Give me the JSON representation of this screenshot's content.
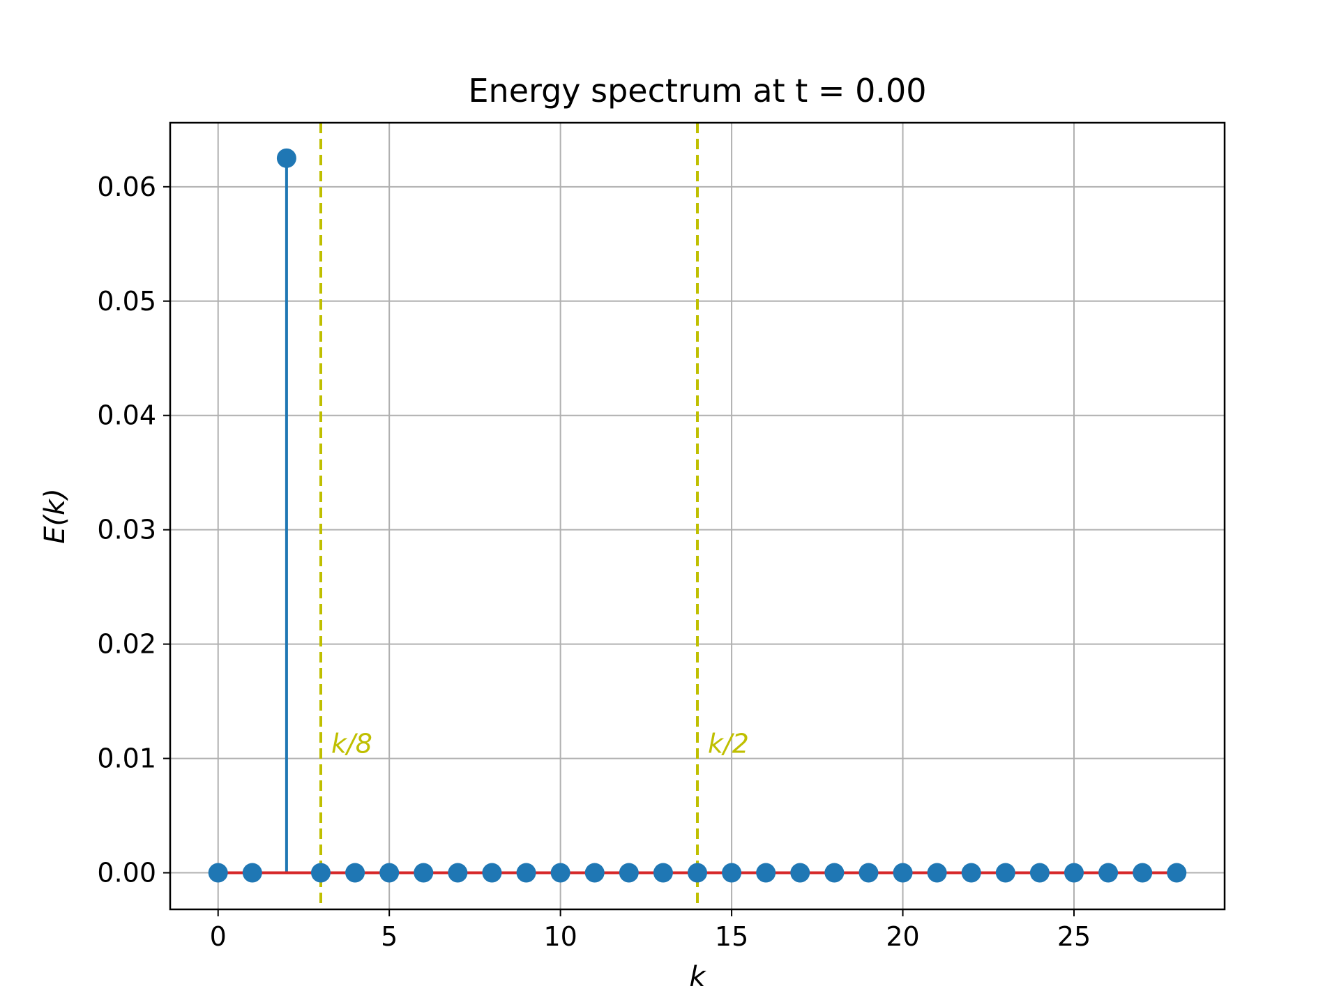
{
  "chart_data": {
    "type": "scatter",
    "subtype": "stem",
    "title": "Energy spectrum at t = 0.00",
    "xlabel": "k",
    "ylabel": "E(k)",
    "xlim": [
      -1.4,
      29.4
    ],
    "ylim": [
      -0.0032,
      0.0656
    ],
    "xticks": [
      0,
      5,
      10,
      15,
      20,
      25
    ],
    "xtick_labels": [
      "0",
      "5",
      "10",
      "15",
      "20",
      "25"
    ],
    "yticks": [
      0.0,
      0.01,
      0.02,
      0.03,
      0.04,
      0.05,
      0.06
    ],
    "ytick_labels": [
      "0.00",
      "0.01",
      "0.02",
      "0.03",
      "0.04",
      "0.05",
      "0.06"
    ],
    "grid": true,
    "series": [
      {
        "color": "#1f77b4",
        "baseline_color": "#d62728",
        "x": [
          0,
          1,
          2,
          3,
          4,
          5,
          6,
          7,
          8,
          9,
          10,
          11,
          12,
          13,
          14,
          15,
          16,
          17,
          18,
          19,
          20,
          21,
          22,
          23,
          24,
          25,
          26,
          27,
          28
        ],
        "values": [
          0,
          0,
          0.0625,
          0,
          0,
          0,
          0,
          0,
          0,
          0,
          0,
          0,
          0,
          0,
          0,
          0,
          0,
          0,
          0,
          0,
          0,
          0,
          0,
          0,
          0,
          0,
          0,
          0,
          0
        ]
      }
    ],
    "vertical_lines": [
      {
        "x": 3,
        "label": "k/8",
        "color": "#bfbf00",
        "style": "dashed"
      },
      {
        "x": 14,
        "label": "k/2",
        "color": "#bfbf00",
        "style": "dashed"
      }
    ]
  }
}
